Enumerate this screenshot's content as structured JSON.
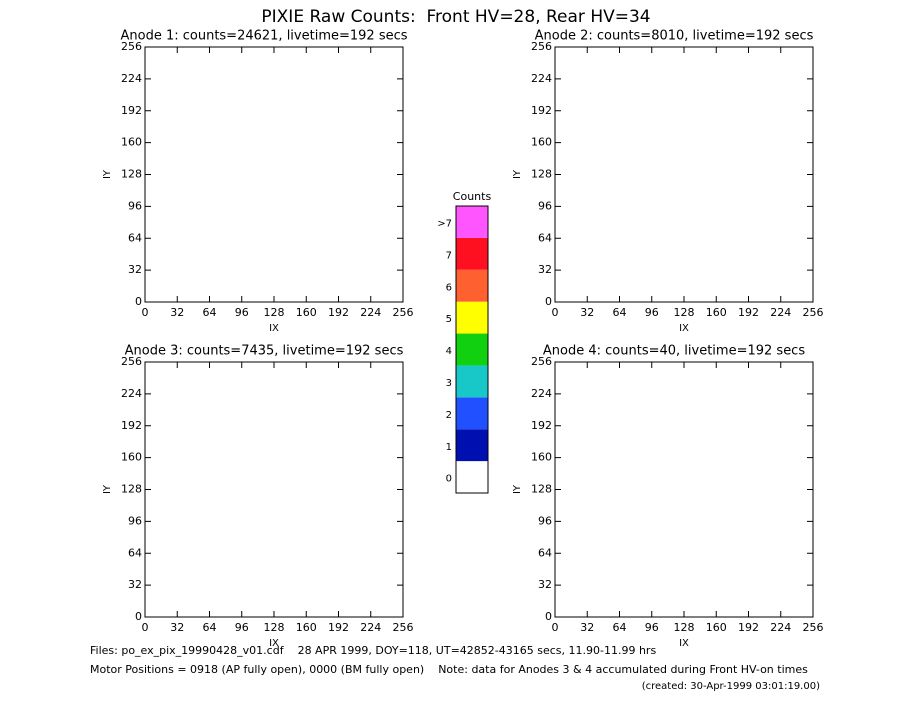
{
  "title": "PIXIE Raw Counts:  Front HV=28, Rear HV=34",
  "chart_data": [
    {
      "type": "heatmap",
      "title": "Anode 1: counts=24621, livetime=192 secs",
      "xlabel": "IX",
      "ylabel": "IY",
      "xlim": [
        0,
        256
      ],
      "ylim": [
        0,
        256
      ],
      "xticks": [
        0,
        32,
        64,
        96,
        128,
        160,
        192,
        224,
        256
      ],
      "yticks": [
        0,
        32,
        64,
        96,
        128,
        160,
        192,
        224,
        256
      ]
    },
    {
      "type": "heatmap",
      "title": "Anode 2: counts=8010, livetime=192 secs",
      "xlabel": "IX",
      "ylabel": "IY",
      "xlim": [
        0,
        256
      ],
      "ylim": [
        0,
        256
      ],
      "xticks": [
        0,
        32,
        64,
        96,
        128,
        160,
        192,
        224,
        256
      ],
      "yticks": [
        0,
        32,
        64,
        96,
        128,
        160,
        192,
        224,
        256
      ]
    },
    {
      "type": "heatmap",
      "title": "Anode 3: counts=7435, livetime=192 secs",
      "xlabel": "IX",
      "ylabel": "IY",
      "xlim": [
        0,
        256
      ],
      "ylim": [
        0,
        256
      ],
      "xticks": [
        0,
        32,
        64,
        96,
        128,
        160,
        192,
        224,
        256
      ],
      "yticks": [
        0,
        32,
        64,
        96,
        128,
        160,
        192,
        224,
        256
      ]
    },
    {
      "type": "heatmap",
      "title": "Anode 4: counts=40, livetime=192 secs",
      "xlabel": "IX",
      "ylabel": "IY",
      "xlim": [
        0,
        256
      ],
      "ylim": [
        0,
        256
      ],
      "xticks": [
        0,
        32,
        64,
        96,
        128,
        160,
        192,
        224,
        256
      ],
      "yticks": [
        0,
        32,
        64,
        96,
        128,
        160,
        192,
        224,
        256
      ]
    },
    {
      "type": "colorbar",
      "title": "Counts",
      "labels": [
        "0",
        "1",
        "2",
        "3",
        "4",
        "5",
        "6",
        "7",
        ">7"
      ],
      "colors": [
        "#ffffff",
        "#0010b0",
        "#2050ff",
        "#18c8c8",
        "#10d010",
        "#ffff00",
        "#ff6030",
        "#ff1020",
        "#ff55ff"
      ]
    }
  ],
  "footer": [
    "Files: po_ex_pix_19990428_v01.cdf    28 APR 1999, DOY=118, UT=42852-43165 secs, 11.90-11.99 hrs",
    "Motor Positions = 0918 (AP fully open), 0000 (BM fully open)    Note: data for Anodes 3 & 4 accumulated during Front HV-on times",
    "(created: 30-Apr-1999 03:01:19.00)"
  ]
}
